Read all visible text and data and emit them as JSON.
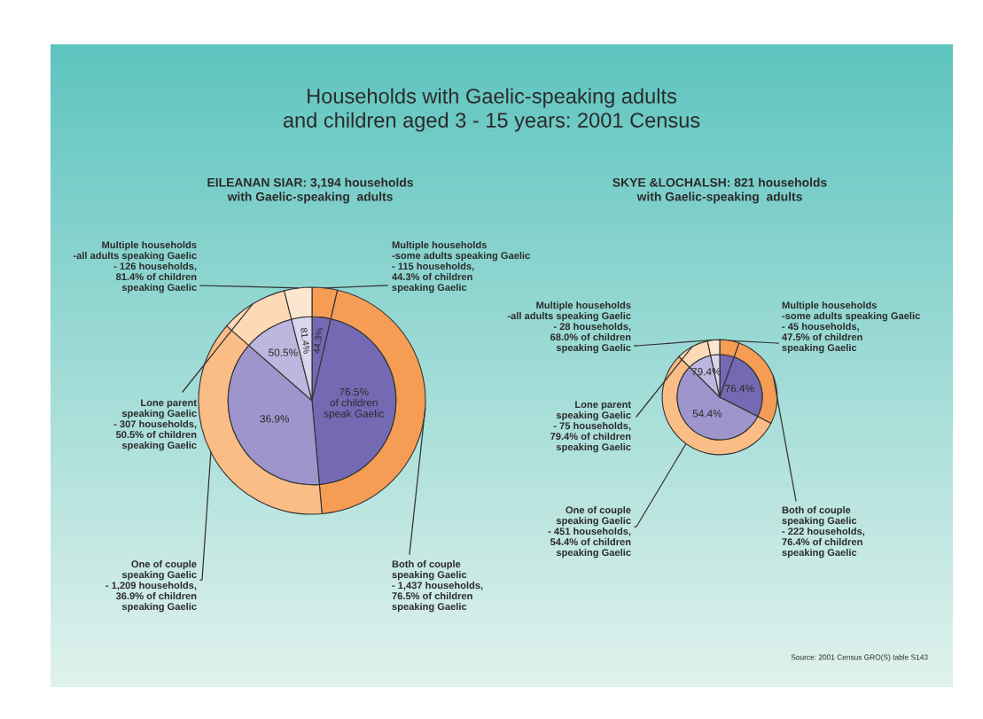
{
  "chart_data": [
    {
      "type": "pie",
      "title": "Households with Gaelic-speaking adults\nand children aged 3 - 15 years: 2001 Census",
      "subtitle": "EILEANAN SIAR: 3,194 households\nwith Gaelic-speaking  adults",
      "categories": [
        "Multiple households\n-some adults speaking Gaelic\n- 115 households,\n44.3% of children\nspeaking Gaelic",
        "Both of couple\nspeaking Gaelic\n- 1,437 households,\n76.5% of children\nspeaking Gaelic",
        "One of couple\nspeaking Gaelic\n- 1,209 households,\n36.9% of children\nspeaking Gaelic",
        "Lone parent\nspeaking Gaelic\n- 307 households,\n50.5% of children\nspeaking Gaelic",
        "Multiple households\n-all adults speaking Gaelic\n- 126 households,\n81.4% of children\nspeaking Gaelic"
      ],
      "series": [
        {
          "values": [
            3.6,
            45.0,
            37.85,
            9.61,
            3.94
          ],
          "colors": [
            "#f59d55",
            "#f59d55",
            "#fbbd86",
            "#fdd9b5",
            "#fde6cf"
          ]
        },
        {
          "values": [
            3.6,
            45.0,
            37.85,
            9.61,
            3.94
          ],
          "colors": [
            "#7469b3",
            "#7469b3",
            "#9d95cb",
            "#bdb6de",
            "#d9d5ec"
          ]
        }
      ],
      "annotations": [
        "44.3%",
        "76.5%\nof children\nspeak Gaelic",
        "36.9%",
        "50.5%",
        "81.4%"
      ]
    },
    {
      "type": "pie",
      "subtitle": "SKYE &LOCHALSH: 821 households\nwith Gaelic-speaking  adults",
      "categories": [
        "Multiple households\n-some adults speaking Gaelic\n- 45 households,\n47.5% of children\nspeaking Gaelic",
        "Both of couple\nspeaking Gaelic\n- 222 households,\n76.4% of children\nspeaking Gaelic",
        "One of couple\nspeaking Gaelic\n- 451 households,\n54.4% of children\nspeaking Gaelic",
        "Lone parent\nspeaking Gaelic\n- 75 households,\n79.4% of children\nspeaking Gaelic",
        "Multiple households\n-all adults speaking Gaelic\n- 28 households,\n68.0% of children\nspeaking Gaelic"
      ],
      "series": [
        {
          "values": [
            5.48,
            27.04,
            54.93,
            9.14,
            3.41
          ],
          "colors": [
            "#f59d55",
            "#f59d55",
            "#fbbd86",
            "#fdd9b5",
            "#fde6cf"
          ]
        },
        {
          "values": [
            5.48,
            27.04,
            54.93,
            9.14,
            3.41
          ],
          "colors": [
            "#7469b3",
            "#7469b3",
            "#9d95cb",
            "#bdb6de",
            "#d9d5ec"
          ]
        }
      ],
      "annotations": [
        "76.4%",
        "54.4%",
        "79.4%",
        "Source: 2001 Census GRO(S) table S143"
      ]
    }
  ]
}
